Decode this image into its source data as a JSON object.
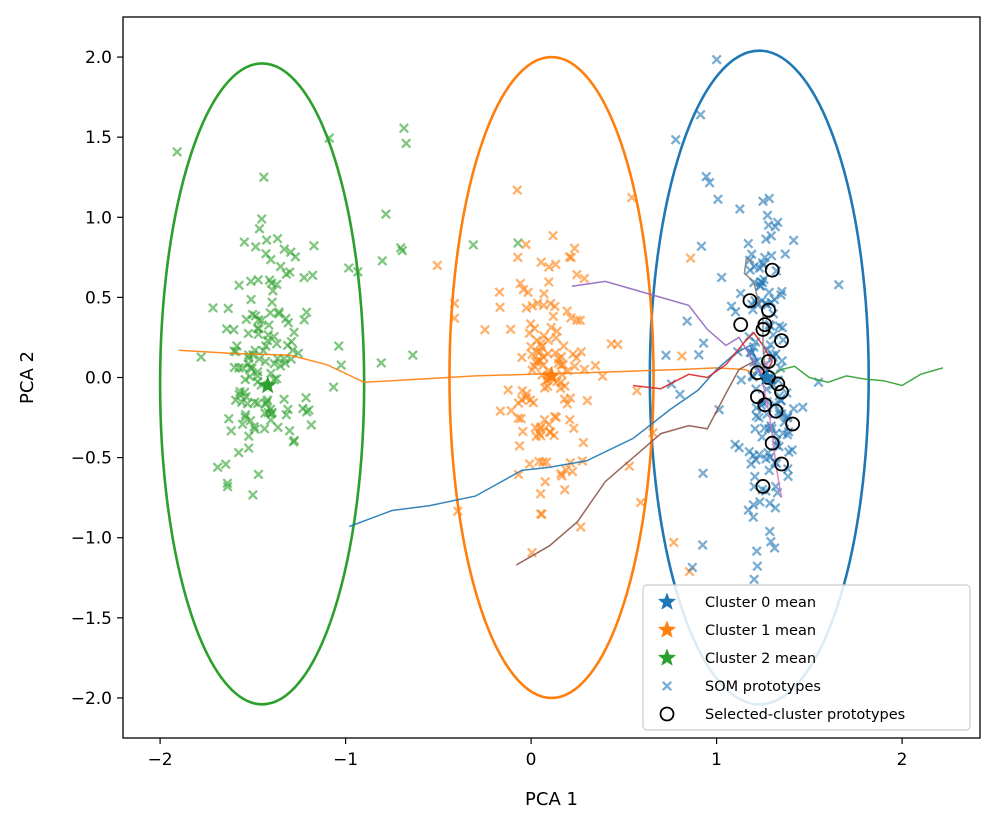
{
  "chart_data": {
    "type": "scatter",
    "title": "",
    "xlabel": "PCA 1",
    "ylabel": "PCA 2",
    "xlim": [
      -2.2,
      2.42
    ],
    "ylim": [
      -2.25,
      2.25
    ],
    "x_ticks": [
      -2,
      -1,
      0,
      1,
      2
    ],
    "x_tick_labels": [
      "−2",
      "−1",
      "0",
      "1",
      "2"
    ],
    "y_ticks": [
      -2.0,
      -1.5,
      -1.0,
      -0.5,
      0.0,
      0.5,
      1.0,
      1.5,
      2.0
    ],
    "y_tick_labels": [
      "−2.0",
      "−1.5",
      "−1.0",
      "−0.5",
      "0.0",
      "0.5",
      "1.0",
      "1.5",
      "2.0"
    ],
    "grid": false,
    "legend_position": "lower-right",
    "colors": {
      "cluster0": "#1f77b4",
      "cluster1": "#ff7f0e",
      "cluster2": "#2ca02c",
      "red": "#d62728",
      "purple": "#9467bd",
      "brown": "#8c564b",
      "pink": "#e377c2",
      "gray": "#7f7f7f"
    },
    "legend": [
      {
        "label": "Cluster 0 mean",
        "marker": "star",
        "color": "#1f77b4"
      },
      {
        "label": "Cluster 1 mean",
        "marker": "star",
        "color": "#ff7f0e"
      },
      {
        "label": "Cluster 2 mean",
        "marker": "star",
        "color": "#2ca02c"
      },
      {
        "label": "SOM prototypes",
        "marker": "x",
        "color": "#1f77b4"
      },
      {
        "label": "Selected-cluster prototypes",
        "marker": "circle-open",
        "color": "#000000"
      }
    ],
    "cluster_means": [
      {
        "cluster": 0,
        "x": 1.27,
        "y": 0.0,
        "color": "#1f77b4"
      },
      {
        "cluster": 1,
        "x": 0.11,
        "y": 0.01,
        "color": "#ff7f0e"
      },
      {
        "cluster": 2,
        "x": -1.42,
        "y": -0.05,
        "color": "#2ca02c"
      }
    ],
    "ellipses": [
      {
        "cluster": 0,
        "cx": 1.23,
        "cy": 0.0,
        "rx": 0.59,
        "ry": 2.04,
        "color": "#1f77b4"
      },
      {
        "cluster": 1,
        "cx": 0.11,
        "cy": 0.0,
        "rx": 0.55,
        "ry": 2.0,
        "color": "#ff7f0e"
      },
      {
        "cluster": 2,
        "cx": -1.45,
        "cy": -0.04,
        "rx": 0.55,
        "ry": 2.0,
        "color": "#2ca02c"
      }
    ],
    "prototypes": [
      {
        "cluster": 2,
        "color": "#2ca02c",
        "center_x": -1.45,
        "spread_x": 0.12,
        "center_y": 0.05,
        "spread_y": 0.42,
        "count": 130,
        "seed": 11
      },
      {
        "cluster": 2,
        "color": "#2ca02c",
        "center_x": -0.95,
        "spread_x": 0.35,
        "center_y": 0.8,
        "spread_y": 0.45,
        "count": 25,
        "seed": 17
      },
      {
        "cluster": 1,
        "color": "#ff7f0e",
        "center_x": 0.1,
        "spread_x": 0.1,
        "center_y": 0.0,
        "spread_y": 0.42,
        "count": 120,
        "seed": 23
      },
      {
        "cluster": 1,
        "color": "#ff7f0e",
        "center_x": 0.2,
        "spread_x": 0.35,
        "center_y": -0.1,
        "spread_y": 0.6,
        "count": 30,
        "seed": 29
      },
      {
        "cluster": 0,
        "color": "#1f77b4",
        "center_x": 1.27,
        "spread_x": 0.07,
        "center_y": 0.0,
        "spread_y": 0.5,
        "count": 140,
        "seed": 31
      },
      {
        "cluster": 0,
        "color": "#1f77b4",
        "center_x": 1.1,
        "spread_x": 0.25,
        "center_y": 0.4,
        "spread_y": 0.7,
        "count": 25,
        "seed": 37
      }
    ],
    "selected_prototypes": [
      {
        "x": 1.3,
        "y": 0.67
      },
      {
        "x": 1.18,
        "y": 0.48
      },
      {
        "x": 1.28,
        "y": 0.42
      },
      {
        "x": 1.26,
        "y": 0.33
      },
      {
        "x": 1.13,
        "y": 0.33
      },
      {
        "x": 1.25,
        "y": 0.3
      },
      {
        "x": 1.35,
        "y": 0.23
      },
      {
        "x": 1.28,
        "y": 0.1
      },
      {
        "x": 1.22,
        "y": 0.03
      },
      {
        "x": 1.28,
        "y": 0.0
      },
      {
        "x": 1.33,
        "y": -0.04
      },
      {
        "x": 1.35,
        "y": -0.09
      },
      {
        "x": 1.22,
        "y": -0.12
      },
      {
        "x": 1.26,
        "y": -0.17
      },
      {
        "x": 1.32,
        "y": -0.21
      },
      {
        "x": 1.41,
        "y": -0.29
      },
      {
        "x": 1.3,
        "y": -0.41
      },
      {
        "x": 1.35,
        "y": -0.54
      },
      {
        "x": 1.25,
        "y": -0.68
      }
    ],
    "trajectories": [
      {
        "color": "#ff7f0e",
        "points": [
          [
            -1.9,
            0.17
          ],
          [
            -1.6,
            0.15
          ],
          [
            -1.3,
            0.14
          ],
          [
            -1.1,
            0.08
          ],
          [
            -0.9,
            -0.03
          ],
          [
            -0.6,
            -0.01
          ],
          [
            -0.3,
            0.01
          ],
          [
            0.0,
            0.02
          ],
          [
            0.3,
            0.03
          ],
          [
            0.55,
            0.04
          ],
          [
            0.8,
            0.05
          ],
          [
            1.0,
            0.06
          ],
          [
            1.15,
            0.05
          ],
          [
            1.2,
            0.03
          ]
        ]
      },
      {
        "color": "#1f77b4",
        "points": [
          [
            -0.98,
            -0.93
          ],
          [
            -0.75,
            -0.83
          ],
          [
            -0.55,
            -0.8
          ],
          [
            -0.3,
            -0.74
          ],
          [
            -0.05,
            -0.58
          ],
          [
            0.1,
            -0.56
          ],
          [
            0.3,
            -0.52
          ],
          [
            0.55,
            -0.38
          ],
          [
            0.75,
            -0.2
          ],
          [
            0.9,
            -0.08
          ],
          [
            1.0,
            0.05
          ],
          [
            1.1,
            0.15
          ],
          [
            1.18,
            0.2
          ],
          [
            1.22,
            0.1
          ]
        ]
      },
      {
        "color": "#8c564b",
        "points": [
          [
            -0.08,
            -1.17
          ],
          [
            0.1,
            -1.05
          ],
          [
            0.25,
            -0.9
          ],
          [
            0.4,
            -0.65
          ],
          [
            0.55,
            -0.5
          ],
          [
            0.7,
            -0.35
          ],
          [
            0.85,
            -0.3
          ],
          [
            0.95,
            -0.32
          ],
          [
            1.05,
            -0.1
          ],
          [
            1.12,
            0.05
          ],
          [
            1.2,
            0.1
          ],
          [
            1.25,
            0.0
          ]
        ]
      },
      {
        "color": "#9467bd",
        "points": [
          [
            0.22,
            0.57
          ],
          [
            0.4,
            0.6
          ],
          [
            0.55,
            0.55
          ],
          [
            0.7,
            0.5
          ],
          [
            0.85,
            0.45
          ],
          [
            0.95,
            0.3
          ],
          [
            1.05,
            0.2
          ],
          [
            1.12,
            0.25
          ],
          [
            1.2,
            0.1
          ],
          [
            1.25,
            0.0
          ]
        ]
      },
      {
        "color": "#d62728",
        "points": [
          [
            0.55,
            -0.05
          ],
          [
            0.7,
            -0.07
          ],
          [
            0.85,
            0.02
          ],
          [
            0.95,
            0.0
          ],
          [
            1.05,
            0.08
          ],
          [
            1.1,
            0.15
          ],
          [
            1.15,
            0.22
          ],
          [
            1.2,
            0.28
          ],
          [
            1.25,
            0.2
          ],
          [
            1.3,
            0.1
          ],
          [
            1.25,
            0.0
          ]
        ]
      },
      {
        "color": "#2ca02c",
        "points": [
          [
            2.22,
            0.06
          ],
          [
            2.1,
            0.02
          ],
          [
            2.0,
            -0.05
          ],
          [
            1.9,
            -0.02
          ],
          [
            1.8,
            -0.01
          ],
          [
            1.7,
            0.01
          ],
          [
            1.6,
            -0.03
          ],
          [
            1.5,
            0.0
          ],
          [
            1.42,
            0.07
          ],
          [
            1.35,
            0.05
          ],
          [
            1.3,
            0.01
          ]
        ]
      },
      {
        "color": "#e377c2",
        "points": [
          [
            1.35,
            -0.75
          ],
          [
            1.32,
            -0.55
          ],
          [
            1.3,
            -0.35
          ],
          [
            1.28,
            -0.2
          ],
          [
            1.26,
            -0.1
          ],
          [
            1.24,
            0.05
          ],
          [
            1.27,
            0.1
          ],
          [
            1.25,
            0.0
          ]
        ]
      },
      {
        "color": "#7f7f7f",
        "points": [
          [
            1.2,
            0.72
          ],
          [
            1.16,
            0.74
          ],
          [
            1.15,
            0.65
          ],
          [
            1.2,
            0.6
          ],
          [
            1.22,
            0.5
          ],
          [
            1.25,
            0.4
          ],
          [
            1.25,
            0.2
          ],
          [
            1.26,
            0.05
          ]
        ]
      }
    ]
  }
}
